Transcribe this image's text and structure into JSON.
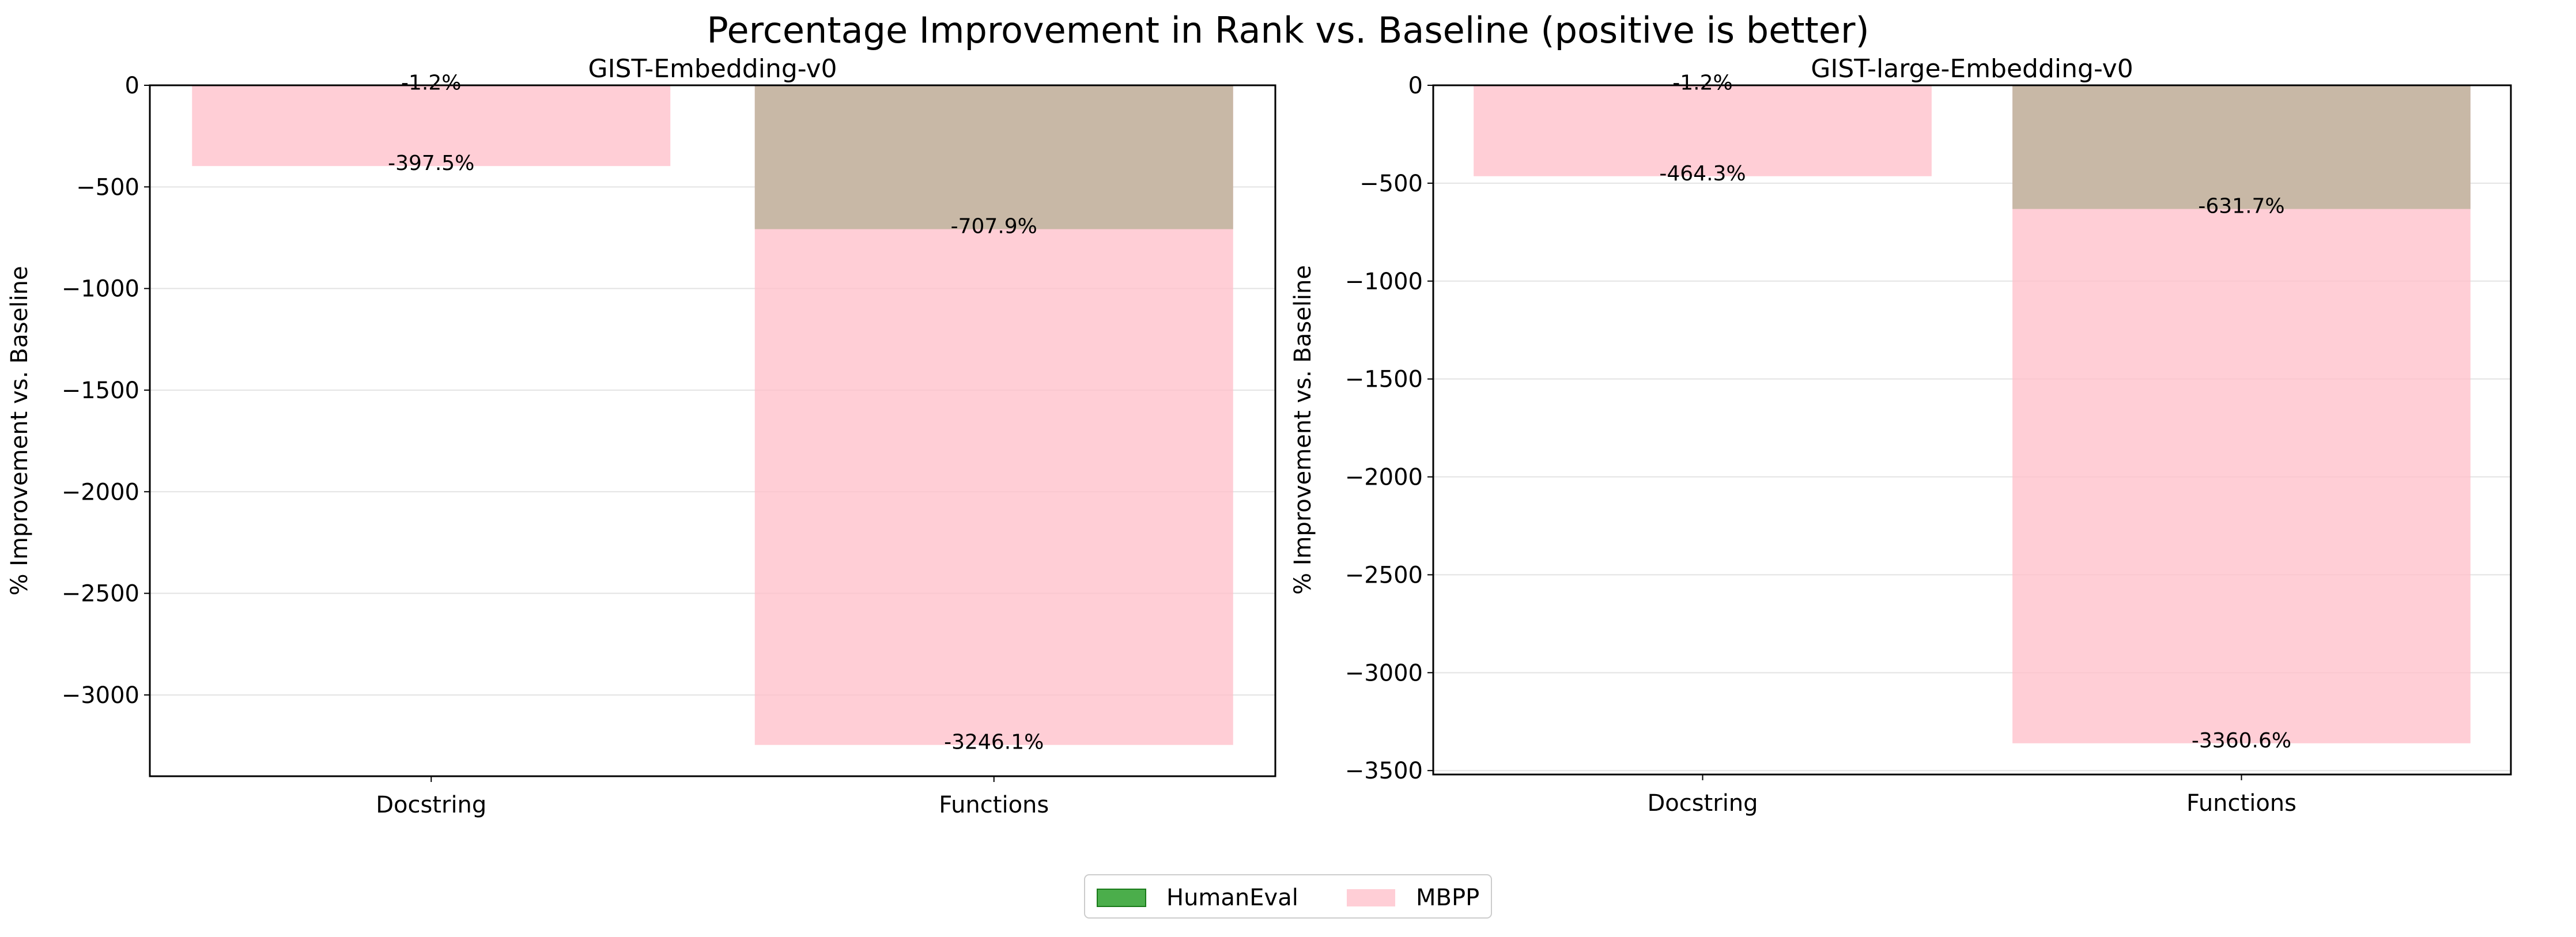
{
  "figure": {
    "title": "Percentage Improvement in Rank vs. Baseline (positive is better)"
  },
  "colors": {
    "humaneval": "#2ca02c",
    "mbpp": "#ffc0cb",
    "overlap": "#c8b8a6",
    "grid": "#e3e3e3"
  },
  "legend": {
    "placement": "bottom-center",
    "items": [
      {
        "label": "HumanEval",
        "color": "#2ca02c"
      },
      {
        "label": "MBPP",
        "color": "#ffc0cb"
      }
    ]
  },
  "chart_data": [
    {
      "type": "bar",
      "title": "GIST-Embedding-v0",
      "ylabel": "% Improvement vs. Baseline",
      "xlabel": "",
      "categories": [
        "Docstring",
        "Functions"
      ],
      "ylim": [
        -3400,
        0
      ],
      "yticks": [
        0,
        -500,
        -1000,
        -1500,
        -2000,
        -2500,
        -3000
      ],
      "ytick_labels": [
        "0",
        "−500",
        "−1000",
        "−1500",
        "−2000",
        "−2500",
        "−3000"
      ],
      "grid": "horizontal",
      "series": [
        {
          "name": "HumanEval",
          "values": [
            -1.2,
            -707.9
          ],
          "labels": [
            "-1.2%",
            "-707.9%"
          ]
        },
        {
          "name": "MBPP",
          "values": [
            -397.5,
            -3246.1
          ],
          "labels": [
            "-397.5%",
            "-3246.1%"
          ]
        }
      ]
    },
    {
      "type": "bar",
      "title": "GIST-large-Embedding-v0",
      "ylabel": "% Improvement vs. Baseline",
      "xlabel": "",
      "categories": [
        "Docstring",
        "Functions"
      ],
      "ylim": [
        -3520,
        0
      ],
      "yticks": [
        0,
        -500,
        -1000,
        -1500,
        -2000,
        -2500,
        -3000,
        -3500
      ],
      "ytick_labels": [
        "0",
        "−500",
        "−1000",
        "−1500",
        "−2000",
        "−2500",
        "−3000",
        "−3500"
      ],
      "grid": "horizontal",
      "series": [
        {
          "name": "HumanEval",
          "values": [
            -1.2,
            -631.7
          ],
          "labels": [
            "-1.2%",
            "-631.7%"
          ]
        },
        {
          "name": "MBPP",
          "values": [
            -464.3,
            -3360.6
          ],
          "labels": [
            "-464.3%",
            "-3360.6%"
          ]
        }
      ]
    }
  ]
}
